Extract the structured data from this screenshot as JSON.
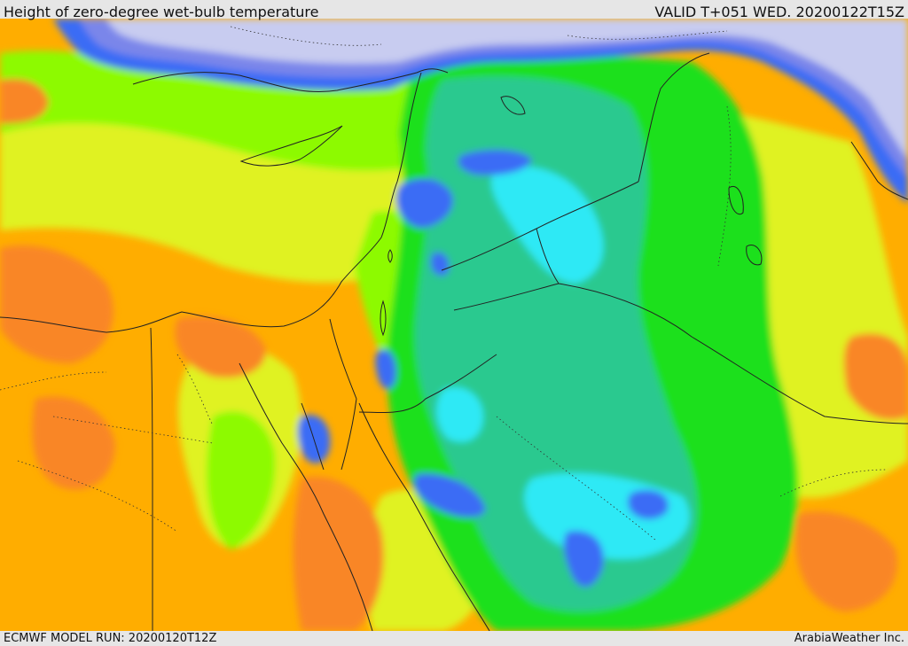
{
  "header": {
    "title": "Height of zero-degree wet-bulb temperature",
    "valid": "VALID T+051 WED. 20200122T15Z"
  },
  "footer": {
    "model_run": "ECMWF MODEL RUN: 20200120T12Z",
    "credit": "ArabiaWeather Inc."
  },
  "map": {
    "region": "Eastern Mediterranean and Middle East",
    "palette": {
      "very_low": "#c8ccf0",
      "low_blue": "#7a86ea",
      "blue": "#3a6cf5",
      "cyan": "#2ee9f5",
      "teal": "#2bc98f",
      "green": "#1fe01f",
      "light_green": "#8dfa00",
      "yellow_green": "#e0f224",
      "orange": "#ffad00",
      "dark_orange": "#f98628",
      "border": "#222222"
    }
  }
}
